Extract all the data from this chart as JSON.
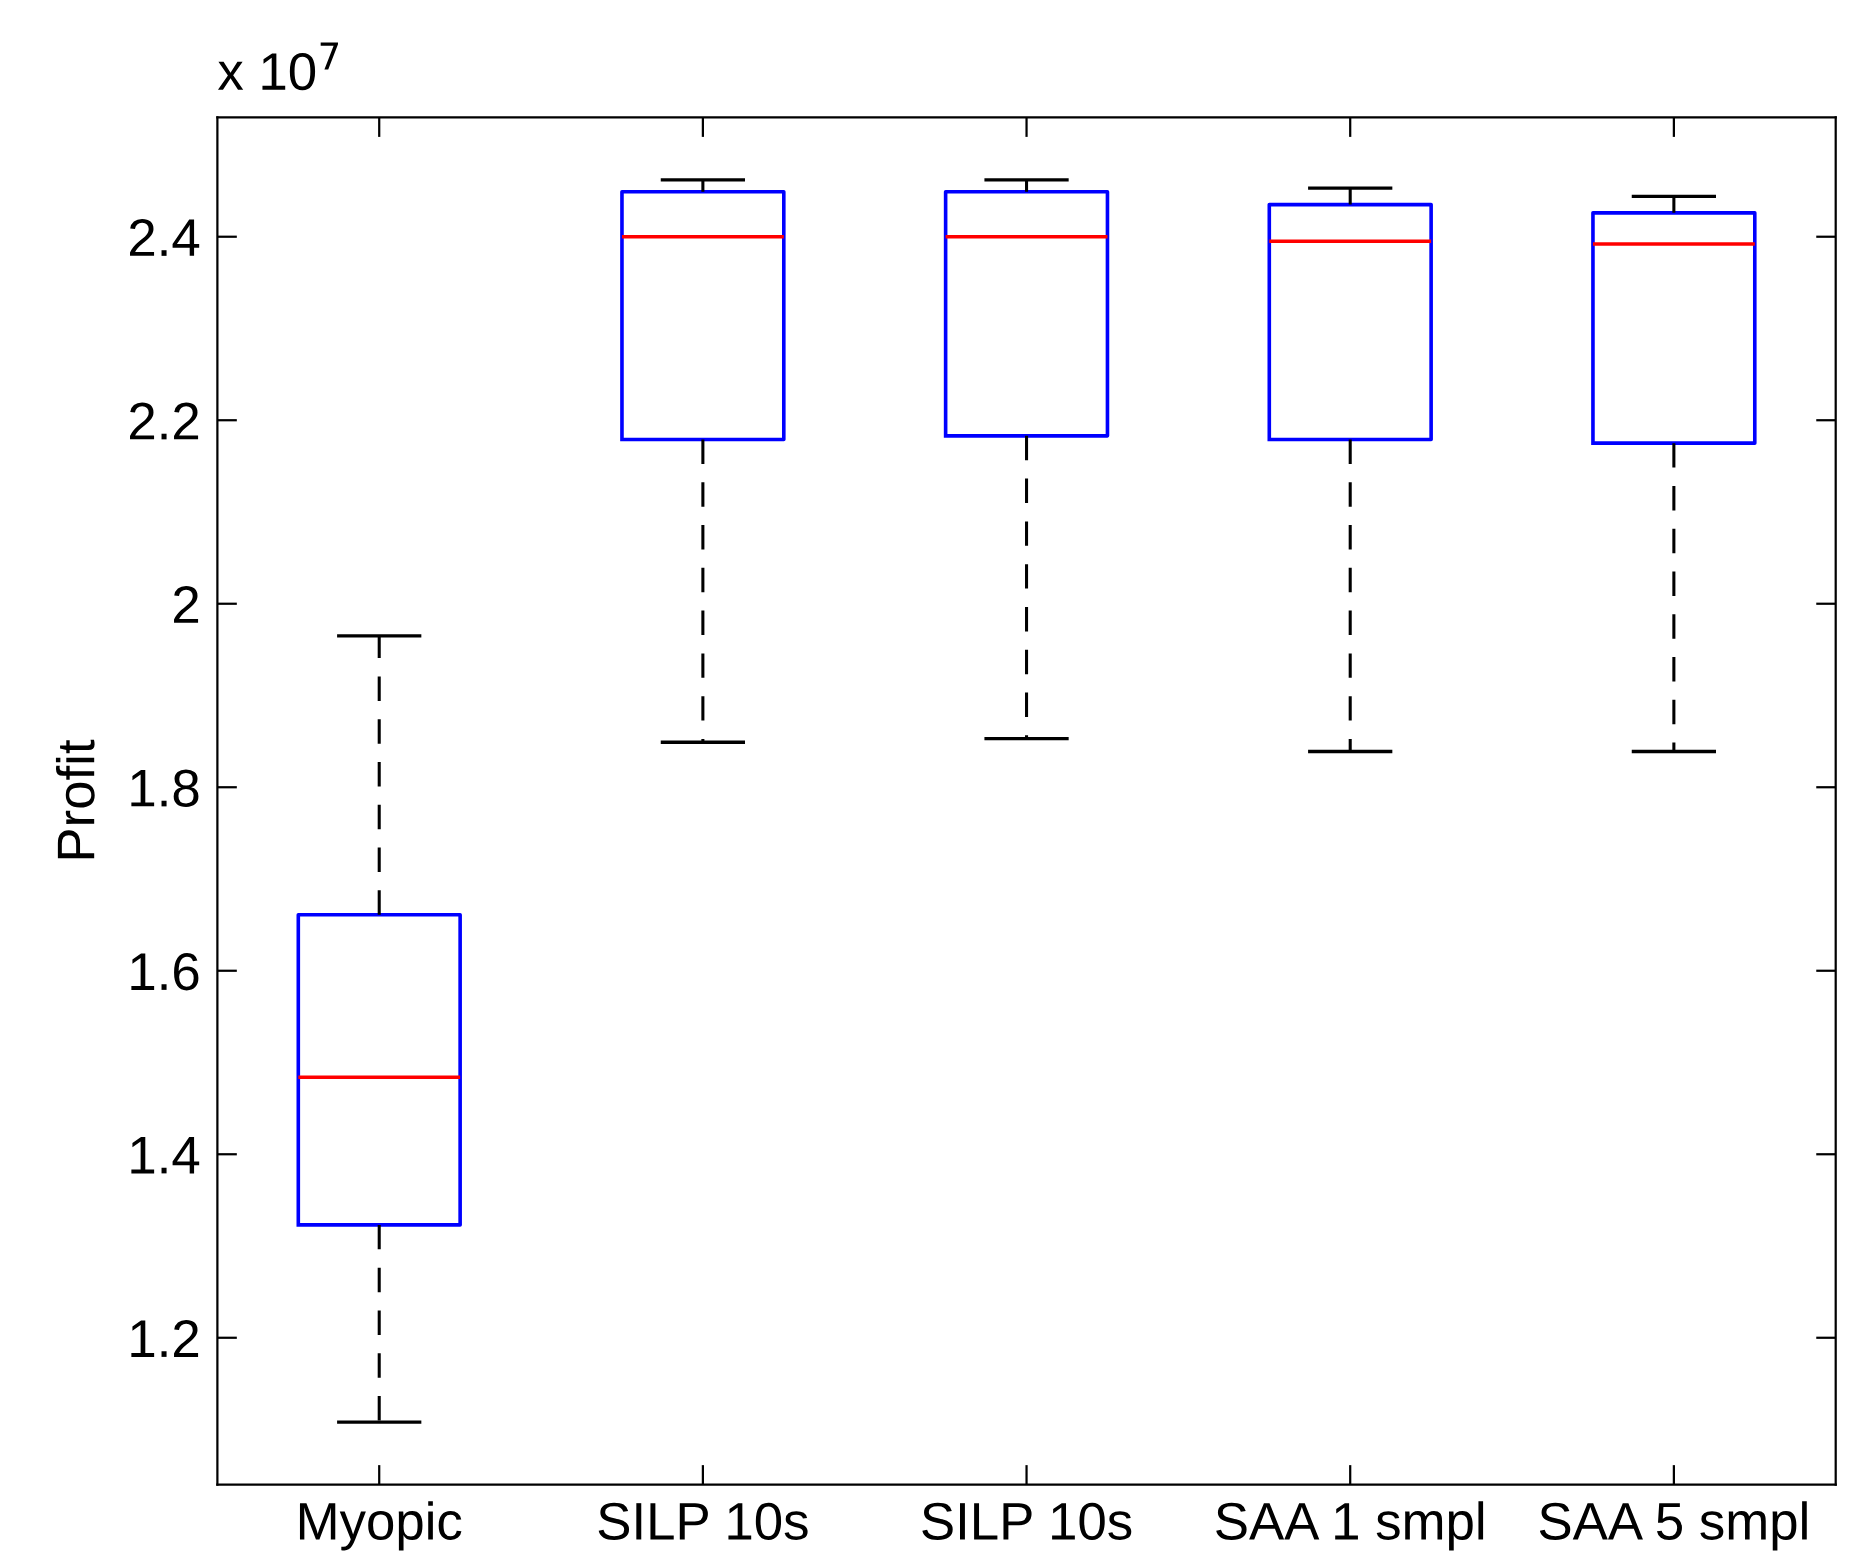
{
  "chart_data": {
    "type": "box",
    "ylabel": "Profit",
    "annotations": [
      "x 10$^{7}$"
    ],
    "categories": [
      "Myopic",
      "SILP 10s",
      "SILP 10s",
      "SAA 1 smpl",
      "SAA 5 smpl"
    ],
    "series": [
      {
        "color": "#0000ff",
        "boxes": [
          {
            "low": 1.108,
            "q1": 1.323,
            "median": 1.484,
            "q3": 1.661,
            "high": 1.965
          },
          {
            "low": 1.849,
            "q1": 2.179,
            "median": 2.4,
            "q3": 2.449,
            "high": 2.462
          },
          {
            "low": 1.853,
            "q1": 2.183,
            "median": 2.4,
            "q3": 2.449,
            "high": 2.462
          },
          {
            "low": 1.839,
            "q1": 2.179,
            "median": 2.395,
            "q3": 2.435,
            "high": 2.453
          },
          {
            "low": 1.839,
            "q1": 2.175,
            "median": 2.392,
            "q3": 2.426,
            "high": 2.444
          }
        ]
      }
    ],
    "ylim": [
      1.04,
      2.53
    ],
    "yticks": [
      1.2,
      1.4,
      1.6,
      1.8,
      2,
      2.2,
      2.4
    ],
    "grid": false
  }
}
